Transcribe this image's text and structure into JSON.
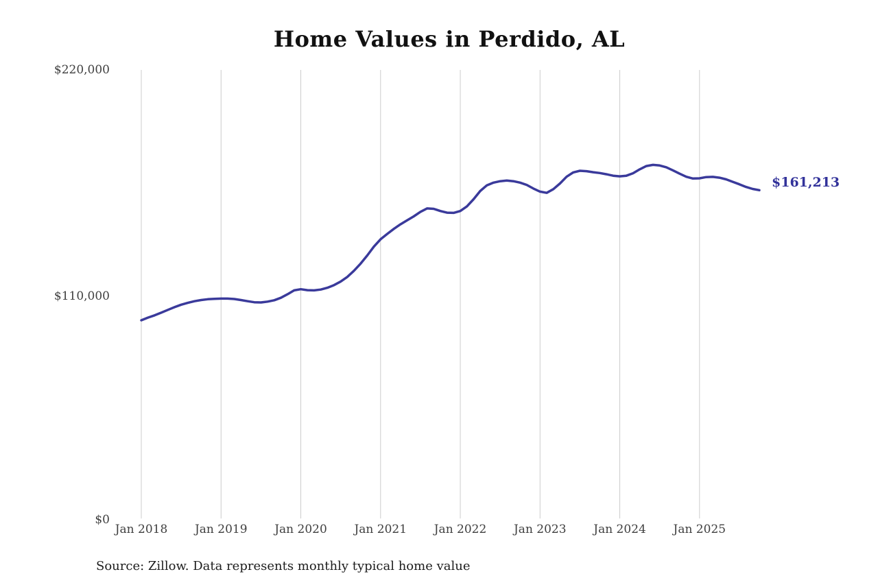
{
  "title": "Home Values in Perdido, AL",
  "source_note": "Source: Zillow. Data represents monthly typical home value",
  "end_label": "$161,213",
  "colors": {
    "line": "#3a3a9b",
    "end_label_text": "#32329a",
    "gridline": "#cccccc",
    "axis_text": "#3f3f3f",
    "title_text": "#111111"
  },
  "chart_data": {
    "type": "line",
    "title": "Home Values in Perdido, AL",
    "xlabel": "",
    "ylabel": "",
    "x_start": "Jan 2018",
    "x_end": "Oct 2025",
    "x_interval": "monthly",
    "x_tick_labels": [
      "Jan 2018",
      "Jan 2019",
      "Jan 2020",
      "Jan 2021",
      "Jan 2022",
      "Jan 2023",
      "Jan 2024",
      "Jan 2025"
    ],
    "y_tick_labels": [
      "$0",
      "$110,000",
      "$220,000"
    ],
    "ylim": [
      0,
      220000
    ],
    "y_tick_values": [
      0,
      110000,
      220000
    ],
    "grid": "vertical-only",
    "legend": "none",
    "latest_value": 161213,
    "series": [
      {
        "name": "Monthly typical home value",
        "values": [
          97600,
          98900,
          100000,
          101300,
          102700,
          104000,
          105200,
          106100,
          106900,
          107500,
          107900,
          108100,
          108200,
          108200,
          108000,
          107500,
          106900,
          106400,
          106300,
          106700,
          107400,
          108600,
          110300,
          112200,
          112800,
          112300,
          112200,
          112600,
          113500,
          114800,
          116500,
          118800,
          121800,
          125300,
          129300,
          133600,
          137200,
          139800,
          142300,
          144500,
          146500,
          148400,
          150600,
          152300,
          152100,
          151000,
          150200,
          150100,
          151000,
          153300,
          156800,
          160800,
          163600,
          164900,
          165600,
          165900,
          165600,
          164900,
          163800,
          162000,
          160500,
          159900,
          161700,
          164500,
          167800,
          169900,
          170700,
          170500,
          170000,
          169600,
          169000,
          168300,
          168000,
          168300,
          169500,
          171400,
          173000,
          173600,
          173300,
          172400,
          170900,
          169300,
          167800,
          166900,
          167000,
          167600,
          167700,
          167300,
          166500,
          165300,
          164100,
          162800,
          161800,
          161213
        ]
      }
    ]
  }
}
